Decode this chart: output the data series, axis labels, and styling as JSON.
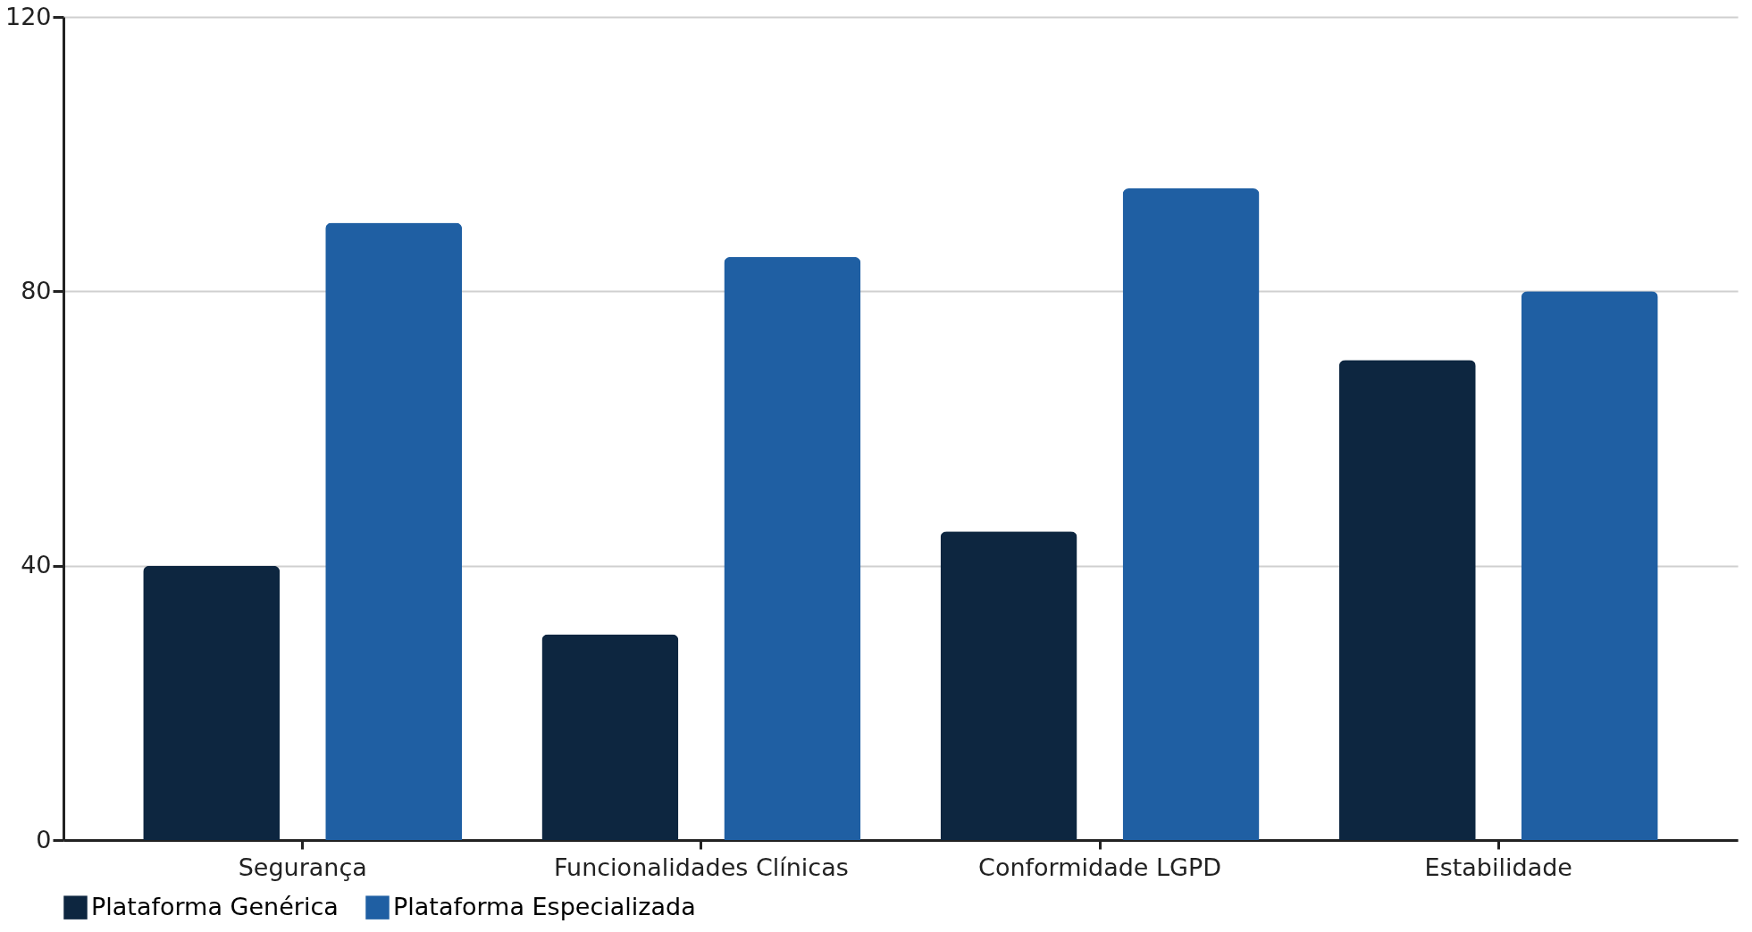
{
  "chart_data": {
    "type": "bar",
    "categories": [
      "Segurança",
      "Funcionalidades Clínicas",
      "Conformidade LGPD",
      "Estabilidade"
    ],
    "series": [
      {
        "name": "Plataforma Genérica",
        "color": "#0d2640",
        "values": [
          40,
          30,
          45,
          70
        ]
      },
      {
        "name": "Plataforma Especializada",
        "color": "#1f5fa3",
        "values": [
          90,
          85,
          95,
          80
        ]
      }
    ],
    "ylim": [
      0,
      120
    ],
    "yticks": [
      0,
      40,
      80,
      120
    ],
    "grid": "y",
    "legend": "bottom"
  }
}
